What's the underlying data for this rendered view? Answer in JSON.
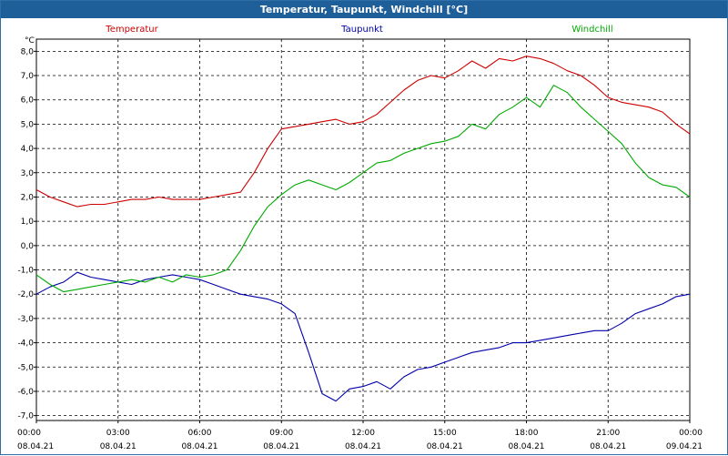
{
  "window": {
    "title": "Temperatur, Taupunkt, Windchill [°C]"
  },
  "chart_data": {
    "type": "line",
    "title": "Temperatur, Taupunkt, Windchill [°C]",
    "ylabel": "°C",
    "xlabel": "",
    "ylim": [
      -7.2,
      8.5
    ],
    "xlim": [
      0,
      24
    ],
    "grid": true,
    "legend": "top",
    "y_ticks": [
      8,
      7,
      6,
      5,
      4,
      3,
      2,
      1,
      0,
      -1,
      -2,
      -3,
      -4,
      -5,
      -6,
      -7
    ],
    "y_tick_labels": [
      "8,0",
      "7,0",
      "6,0",
      "5,0",
      "4,0",
      "3,0",
      "2,0",
      "1,0",
      "0,0",
      "-1,0",
      "-2,0",
      "-3,0",
      "-4,0",
      "-5,0",
      "-6,0",
      "-7,0"
    ],
    "x_ticks": [
      0,
      3,
      6,
      9,
      12,
      15,
      18,
      21,
      24
    ],
    "x_tick_labels": [
      "00:00",
      "03:00",
      "06:00",
      "09:00",
      "12:00",
      "15:00",
      "18:00",
      "21:00",
      "00:00"
    ],
    "x_tick_dates": [
      "08.04.21",
      "08.04.21",
      "08.04.21",
      "08.04.21",
      "08.04.21",
      "08.04.21",
      "08.04.21",
      "08.04.21",
      "09.04.21"
    ],
    "series": [
      {
        "name": "Temperatur",
        "color": "#cc0000",
        "x": [
          0,
          0.5,
          1,
          1.5,
          2,
          2.5,
          3,
          3.5,
          4,
          4.5,
          5,
          5.5,
          6,
          6.5,
          7,
          7.5,
          8,
          8.5,
          9,
          9.5,
          10,
          10.5,
          11,
          11.5,
          12,
          12.5,
          13,
          13.5,
          14,
          14.5,
          15,
          15.5,
          16,
          16.5,
          17,
          17.5,
          18,
          18.5,
          19,
          19.5,
          20,
          20.5,
          21,
          21.5,
          22,
          22.5,
          23,
          23.5,
          24
        ],
        "values": [
          2.3,
          2.0,
          1.8,
          1.6,
          1.7,
          1.7,
          1.8,
          1.9,
          1.9,
          2.0,
          1.9,
          1.9,
          1.9,
          2.0,
          2.1,
          2.2,
          3.0,
          4.0,
          4.8,
          4.9,
          5.0,
          5.1,
          5.2,
          5.0,
          5.1,
          5.4,
          5.9,
          6.4,
          6.8,
          7.0,
          6.9,
          7.2,
          7.6,
          7.3,
          7.7,
          7.6,
          7.8,
          7.7,
          7.5,
          7.2,
          7.0,
          6.6,
          6.1,
          5.9,
          5.8,
          5.7,
          5.5,
          5.0,
          4.6
        ]
      },
      {
        "name": "Taupunkt",
        "color": "#0000aa",
        "x": [
          0,
          0.5,
          1,
          1.5,
          2,
          2.5,
          3,
          3.5,
          4,
          4.5,
          5,
          5.5,
          6,
          6.5,
          7,
          7.5,
          8,
          8.5,
          9,
          9.5,
          10,
          10.5,
          11,
          11.5,
          12,
          12.5,
          13,
          13.5,
          14,
          14.5,
          15,
          15.5,
          16,
          16.5,
          17,
          17.5,
          18,
          18.5,
          19,
          19.5,
          20,
          20.5,
          21,
          21.5,
          22,
          22.5,
          23,
          23.5,
          24
        ],
        "values": [
          -2.0,
          -1.7,
          -1.5,
          -1.1,
          -1.3,
          -1.4,
          -1.5,
          -1.6,
          -1.4,
          -1.3,
          -1.2,
          -1.3,
          -1.4,
          -1.6,
          -1.8,
          -2.0,
          -2.1,
          -2.2,
          -2.4,
          -2.8,
          -4.4,
          -6.1,
          -6.4,
          -5.9,
          -5.8,
          -5.6,
          -5.9,
          -5.4,
          -5.1,
          -5.0,
          -4.8,
          -4.6,
          -4.4,
          -4.3,
          -4.2,
          -4.0,
          -4.0,
          -3.9,
          -3.8,
          -3.7,
          -3.6,
          -3.5,
          -3.5,
          -3.2,
          -2.8,
          -2.6,
          -2.4,
          -2.1,
          -2.0
        ]
      },
      {
        "name": "Windchill",
        "color": "#00aa00",
        "x": [
          0,
          0.5,
          1,
          1.5,
          2,
          2.5,
          3,
          3.5,
          4,
          4.5,
          5,
          5.5,
          6,
          6.5,
          7,
          7.5,
          8,
          8.5,
          9,
          9.5,
          10,
          10.5,
          11,
          11.5,
          12,
          12.5,
          13,
          13.5,
          14,
          14.5,
          15,
          15.5,
          16,
          16.5,
          17,
          17.5,
          18,
          18.5,
          19,
          19.5,
          20,
          20.5,
          21,
          21.5,
          22,
          22.5,
          23,
          23.5,
          24
        ],
        "values": [
          -1.2,
          -1.6,
          -1.9,
          -1.8,
          -1.7,
          -1.6,
          -1.5,
          -1.4,
          -1.5,
          -1.3,
          -1.5,
          -1.2,
          -1.3,
          -1.2,
          -1.0,
          -0.2,
          0.8,
          1.6,
          2.1,
          2.5,
          2.7,
          2.5,
          2.3,
          2.6,
          3.0,
          3.4,
          3.5,
          3.8,
          4.0,
          4.2,
          4.3,
          4.5,
          5.0,
          4.8,
          5.4,
          5.7,
          6.1,
          5.7,
          6.6,
          6.3,
          5.7,
          5.2,
          4.7,
          4.2,
          3.4,
          2.8,
          2.5,
          2.4,
          2.0
        ]
      }
    ]
  }
}
